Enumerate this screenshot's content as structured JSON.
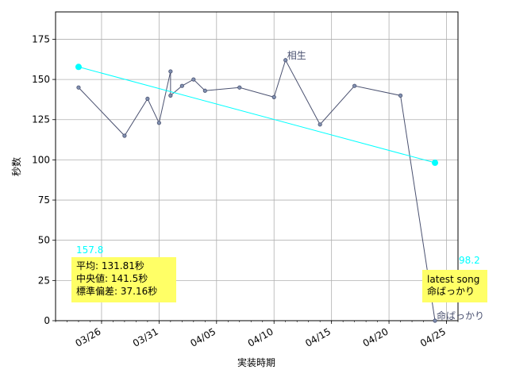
{
  "chart_data": {
    "type": "line",
    "xlabel": "実装時期",
    "ylabel": "秒数",
    "ylim": [
      0,
      192
    ],
    "xlim": [
      "2024-03-22",
      "2024-04-26"
    ],
    "yticks": [
      0,
      25,
      50,
      75,
      100,
      125,
      150,
      175
    ],
    "xticks": [
      "03/26",
      "03/31",
      "04/05",
      "04/10",
      "04/15",
      "04/20",
      "04/25"
    ],
    "grid": true,
    "series": [
      {
        "color": "#4a5170",
        "x": [
          "2024-03-24",
          "2024-03-28",
          "2024-03-30",
          "2024-03-31",
          "2024-04-01",
          "2024-04-01",
          "2024-04-02",
          "2024-04-03",
          "2024-04-04",
          "2024-04-07",
          "2024-04-10",
          "2024-04-11",
          "2024-04-14",
          "2024-04-17",
          "2024-04-21",
          "2024-04-24"
        ],
        "y": [
          145,
          115,
          138,
          123,
          155,
          140,
          146,
          150,
          143,
          145,
          139,
          162,
          122,
          146,
          140,
          0
        ]
      },
      {
        "color": "#00ffff",
        "x": [
          "2024-03-24",
          "2024-04-24"
        ],
        "y": [
          157.8,
          98.2
        ]
      }
    ],
    "point_labels": [
      {
        "x": "2024-04-11",
        "y": 162,
        "text": "相生"
      },
      {
        "x": "2024-04-24",
        "y": 0,
        "text": "命ばっかり"
      }
    ],
    "trend_labels": {
      "start": "157.8",
      "end": "98.2"
    },
    "stats_box": {
      "line1": "平均: 131.81秒",
      "line2": "中央値: 141.5秒",
      "line3": "標準偏差:  37.16秒",
      "color": "#ffff66"
    },
    "latest_box": {
      "line1": "latest song",
      "line2": "命ばっかり",
      "color": "#ffff66"
    }
  }
}
